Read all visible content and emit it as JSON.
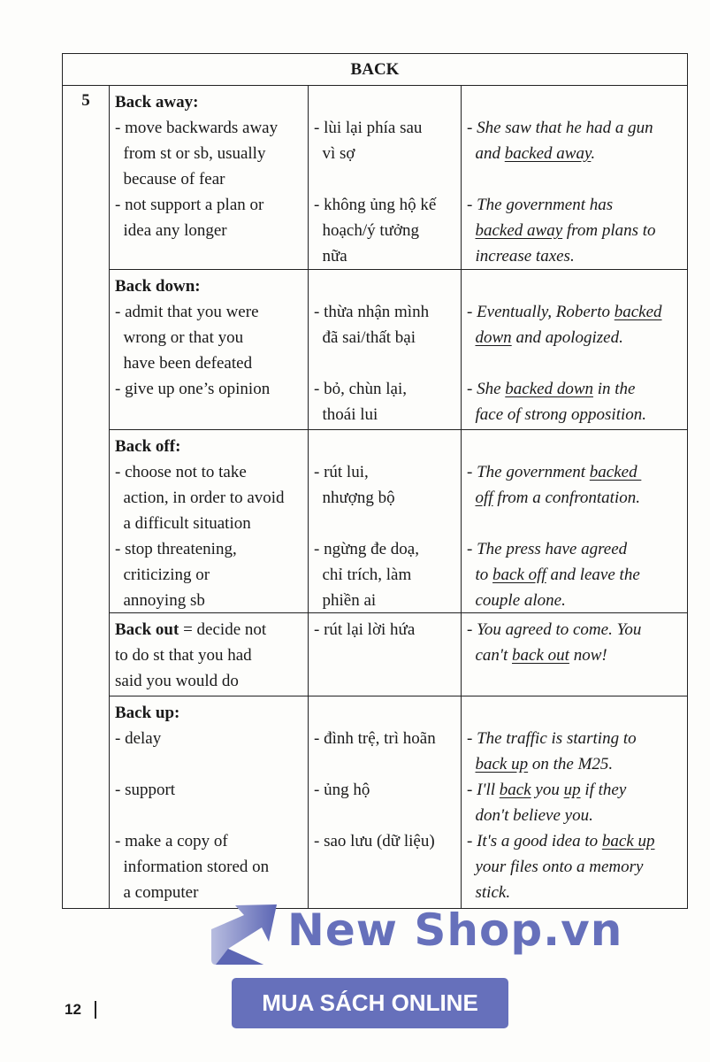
{
  "table": {
    "title": "BACK",
    "number": "5",
    "rows": [
      {
        "def": [
          [
            {
              "b": "Back away:"
            }
          ],
          [
            "- move backwards away"
          ],
          [
            "  from st or sb, usually"
          ],
          [
            "  because of fear"
          ],
          [
            "- not support a plan or"
          ],
          [
            "  idea any longer"
          ]
        ],
        "vi": [
          [
            ""
          ],
          [
            "- lùi lại phía sau"
          ],
          [
            "  vì sợ"
          ],
          [
            ""
          ],
          [
            "- không ủng hộ kế"
          ],
          [
            "  hoạch/ý tưởng"
          ],
          [
            "  nữa"
          ]
        ],
        "ex": [
          [
            ""
          ],
          [
            "- She saw that he had a gun"
          ],
          [
            "  and ",
            {
              "u": "backed away"
            },
            "."
          ],
          [
            ""
          ],
          [
            "- The government has"
          ],
          [
            "  ",
            {
              "u": "backed away"
            },
            " from plans to"
          ],
          [
            "  increase taxes."
          ]
        ]
      },
      {
        "def": [
          [
            {
              "b": "Back down:"
            }
          ],
          [
            "- admit that you were"
          ],
          [
            "  wrong or that you"
          ],
          [
            "  have been defeated"
          ],
          [
            "- give up one’s opinion"
          ]
        ],
        "vi": [
          [
            ""
          ],
          [
            "- thừa nhận mình"
          ],
          [
            "  đã sai/thất bại"
          ],
          [
            ""
          ],
          [
            "- bỏ, chùn lại,"
          ],
          [
            "  thoái lui"
          ]
        ],
        "ex": [
          [
            ""
          ],
          [
            "- Eventually, Roberto ",
            {
              "u": "backed"
            }
          ],
          [
            "  ",
            {
              "u": "down"
            },
            " and apologized."
          ],
          [
            ""
          ],
          [
            "- She ",
            {
              "u": "backed down"
            },
            " in the"
          ],
          [
            "  face of strong opposition."
          ]
        ]
      },
      {
        "def": [
          [
            {
              "b": "Back off:"
            }
          ],
          [
            "- choose not to take"
          ],
          [
            "  action, in order to avoid"
          ],
          [
            "  a difficult situation"
          ],
          [
            "- stop threatening,"
          ],
          [
            "  criticizing or"
          ],
          [
            "  annoying sb"
          ]
        ],
        "vi": [
          [
            ""
          ],
          [
            "- rút lui,"
          ],
          [
            "  nhượng bộ"
          ],
          [
            ""
          ],
          [
            "- ngừng đe doạ,"
          ],
          [
            "  chỉ trích, làm"
          ],
          [
            "  phiền ai"
          ]
        ],
        "ex": [
          [
            ""
          ],
          [
            "- The government ",
            {
              "u": "backed "
            }
          ],
          [
            "  ",
            {
              "u": "off"
            },
            " from a confrontation."
          ],
          [
            ""
          ],
          [
            "- The press have agreed"
          ],
          [
            "  to ",
            {
              "u": "back off"
            },
            " and leave the"
          ],
          [
            "  couple alone."
          ]
        ]
      },
      {
        "def": [
          [
            {
              "b": "Back out"
            },
            " = decide not"
          ],
          [
            "to do st that you had"
          ],
          [
            "said you would do"
          ]
        ],
        "vi": [
          [
            "- rút lại lời hứa"
          ]
        ],
        "ex": [
          [
            "- You agreed to come. You"
          ],
          [
            "  can't ",
            {
              "u": "back out"
            },
            " now!"
          ]
        ]
      },
      {
        "def": [
          [
            {
              "b": "Back up:"
            }
          ],
          [
            "- delay"
          ],
          [
            ""
          ],
          [
            "- support"
          ],
          [
            ""
          ],
          [
            "- make a copy of"
          ],
          [
            "  information stored on"
          ],
          [
            "  a computer"
          ]
        ],
        "vi": [
          [
            ""
          ],
          [
            "- đình trệ, trì hoãn"
          ],
          [
            ""
          ],
          [
            "- ủng hộ"
          ],
          [
            ""
          ],
          [
            "- sao lưu (dữ liệu)"
          ]
        ],
        "ex": [
          [
            ""
          ],
          [
            "- The traffic is starting to"
          ],
          [
            "  ",
            {
              "u": "back up"
            },
            " on the M25."
          ],
          [
            "- I'll ",
            {
              "u": "back"
            },
            " you ",
            {
              "u": "up"
            },
            " if they"
          ],
          [
            "  don't believe you."
          ],
          [
            "- It's a good idea to ",
            {
              "u": "back up"
            }
          ],
          [
            "  your files onto a memory"
          ],
          [
            "  stick."
          ]
        ]
      }
    ]
  },
  "watermark": {
    "logo_text": "New Shop.vn",
    "button": "MUA SÁCH ONLINE",
    "color": "#6670bb"
  },
  "page_number": "12"
}
